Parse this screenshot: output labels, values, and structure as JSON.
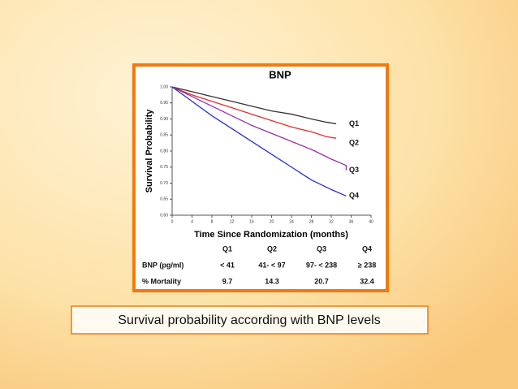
{
  "chart_data": {
    "type": "line",
    "title": "BNP",
    "ylabel": "Survival Probability",
    "xlabel": "Time Since Randomization (months)",
    "xlim": [
      0,
      40
    ],
    "xticks": [
      0,
      4,
      8,
      12,
      16,
      20,
      24,
      28,
      32,
      36,
      40
    ],
    "ylim": [
      0.6,
      1.0
    ],
    "yticks": [
      {
        "value": 0.6,
        "label": "0.60"
      },
      {
        "value": 0.65,
        "label": "0.65"
      },
      {
        "value": 0.7,
        "label": "0.70"
      },
      {
        "value": 0.75,
        "label": "0.75"
      },
      {
        "value": 0.8,
        "label": "0.80"
      },
      {
        "value": 0.85,
        "label": "0.85"
      },
      {
        "value": 0.9,
        "label": "0.90"
      },
      {
        "value": 0.95,
        "label": "0.95"
      },
      {
        "value": 1.0,
        "label": "1.00"
      }
    ],
    "series": [
      {
        "name": "Q1",
        "color": "#333333",
        "x": [
          0,
          4,
          8,
          12,
          16,
          20,
          24,
          28,
          31,
          33
        ],
        "values": [
          1,
          0.985,
          0.97,
          0.955,
          0.94,
          0.925,
          0.915,
          0.9,
          0.89,
          0.885
        ]
      },
      {
        "name": "Q2",
        "color": "#e0302a",
        "x": [
          0,
          4,
          8,
          12,
          16,
          20,
          24,
          28,
          31,
          33
        ],
        "values": [
          1,
          0.975,
          0.955,
          0.935,
          0.915,
          0.895,
          0.875,
          0.86,
          0.845,
          0.84
        ]
      },
      {
        "name": "Q3",
        "color": "#9b2fa8",
        "x": [
          0,
          4,
          8,
          12,
          16,
          20,
          24,
          28,
          32,
          35,
          35
        ],
        "values": [
          1,
          0.97,
          0.94,
          0.91,
          0.88,
          0.855,
          0.83,
          0.805,
          0.775,
          0.755,
          0.74
        ]
      },
      {
        "name": "Q4",
        "color": "#2a2fd0",
        "x": [
          0,
          4,
          8,
          12,
          16,
          20,
          24,
          28,
          32,
          35
        ],
        "values": [
          1,
          0.955,
          0.91,
          0.87,
          0.83,
          0.79,
          0.75,
          0.71,
          0.68,
          0.66
        ]
      }
    ]
  },
  "table": {
    "header": [
      "Q1",
      "Q2",
      "Q3",
      "Q4"
    ],
    "rows": [
      [
        "BNP (pg/ml)",
        "< 41",
        "41- < 97",
        "97- < 238",
        "≥ 238"
      ],
      [
        "% Mortality",
        "9.7",
        "14.3",
        "20.7",
        "32.4"
      ]
    ]
  },
  "caption": "Survival probability according with BNP levels"
}
